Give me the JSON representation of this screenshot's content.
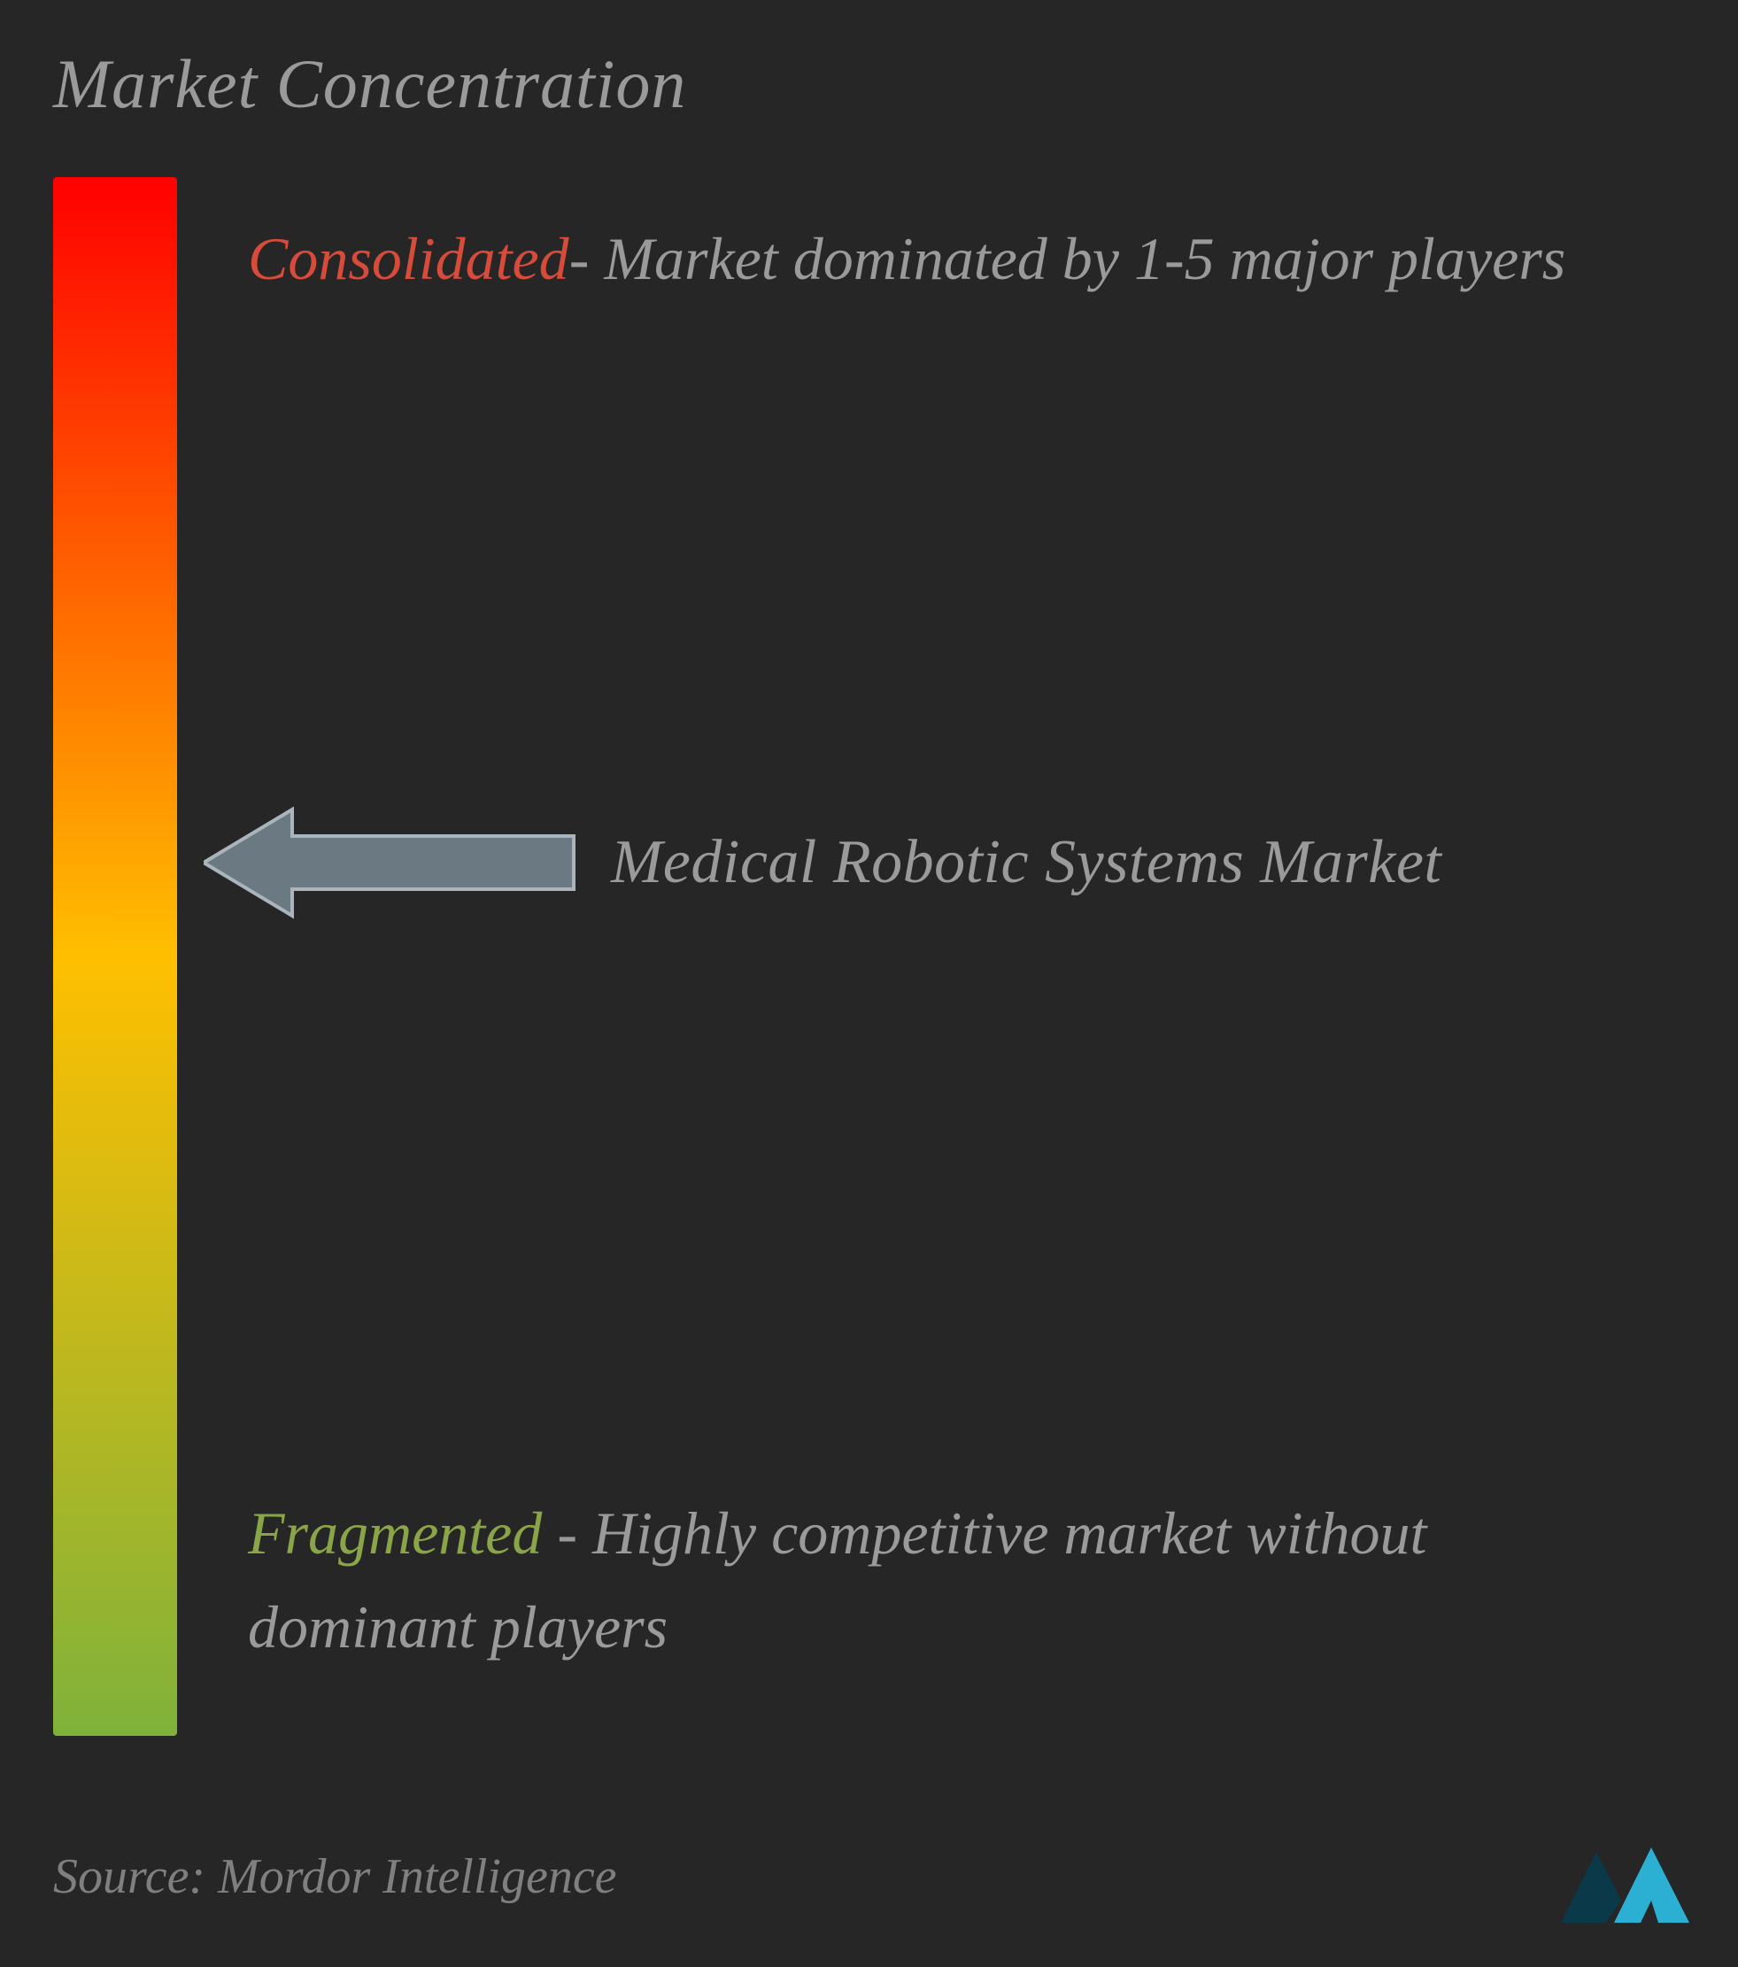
{
  "title": "Market Concentration",
  "gradient": {
    "top_color": "#ff0000",
    "mid_color": "#ffbf00",
    "bottom_color": "#7fb23b"
  },
  "top_label": {
    "title": "Consolidated",
    "title_color": "#d64b3a",
    "text": "- Market dominated by 1-5 major players"
  },
  "bottom_label": {
    "title": "Fragmented",
    "title_color": "#8aa548",
    "text": " - Highly competitive market without dominant players"
  },
  "marker": {
    "label": "Medical Robotic Systems Market",
    "position_pct": 44,
    "arrow_fill": "#6b7a82",
    "arrow_stroke": "#a9b5bb"
  },
  "source": "Source: Mordor Intelligence",
  "text_color": "#9a9a9a",
  "background_color": "#262626",
  "logo_colors": {
    "dark": "#0a3a4a",
    "light": "#2bb0d4"
  }
}
